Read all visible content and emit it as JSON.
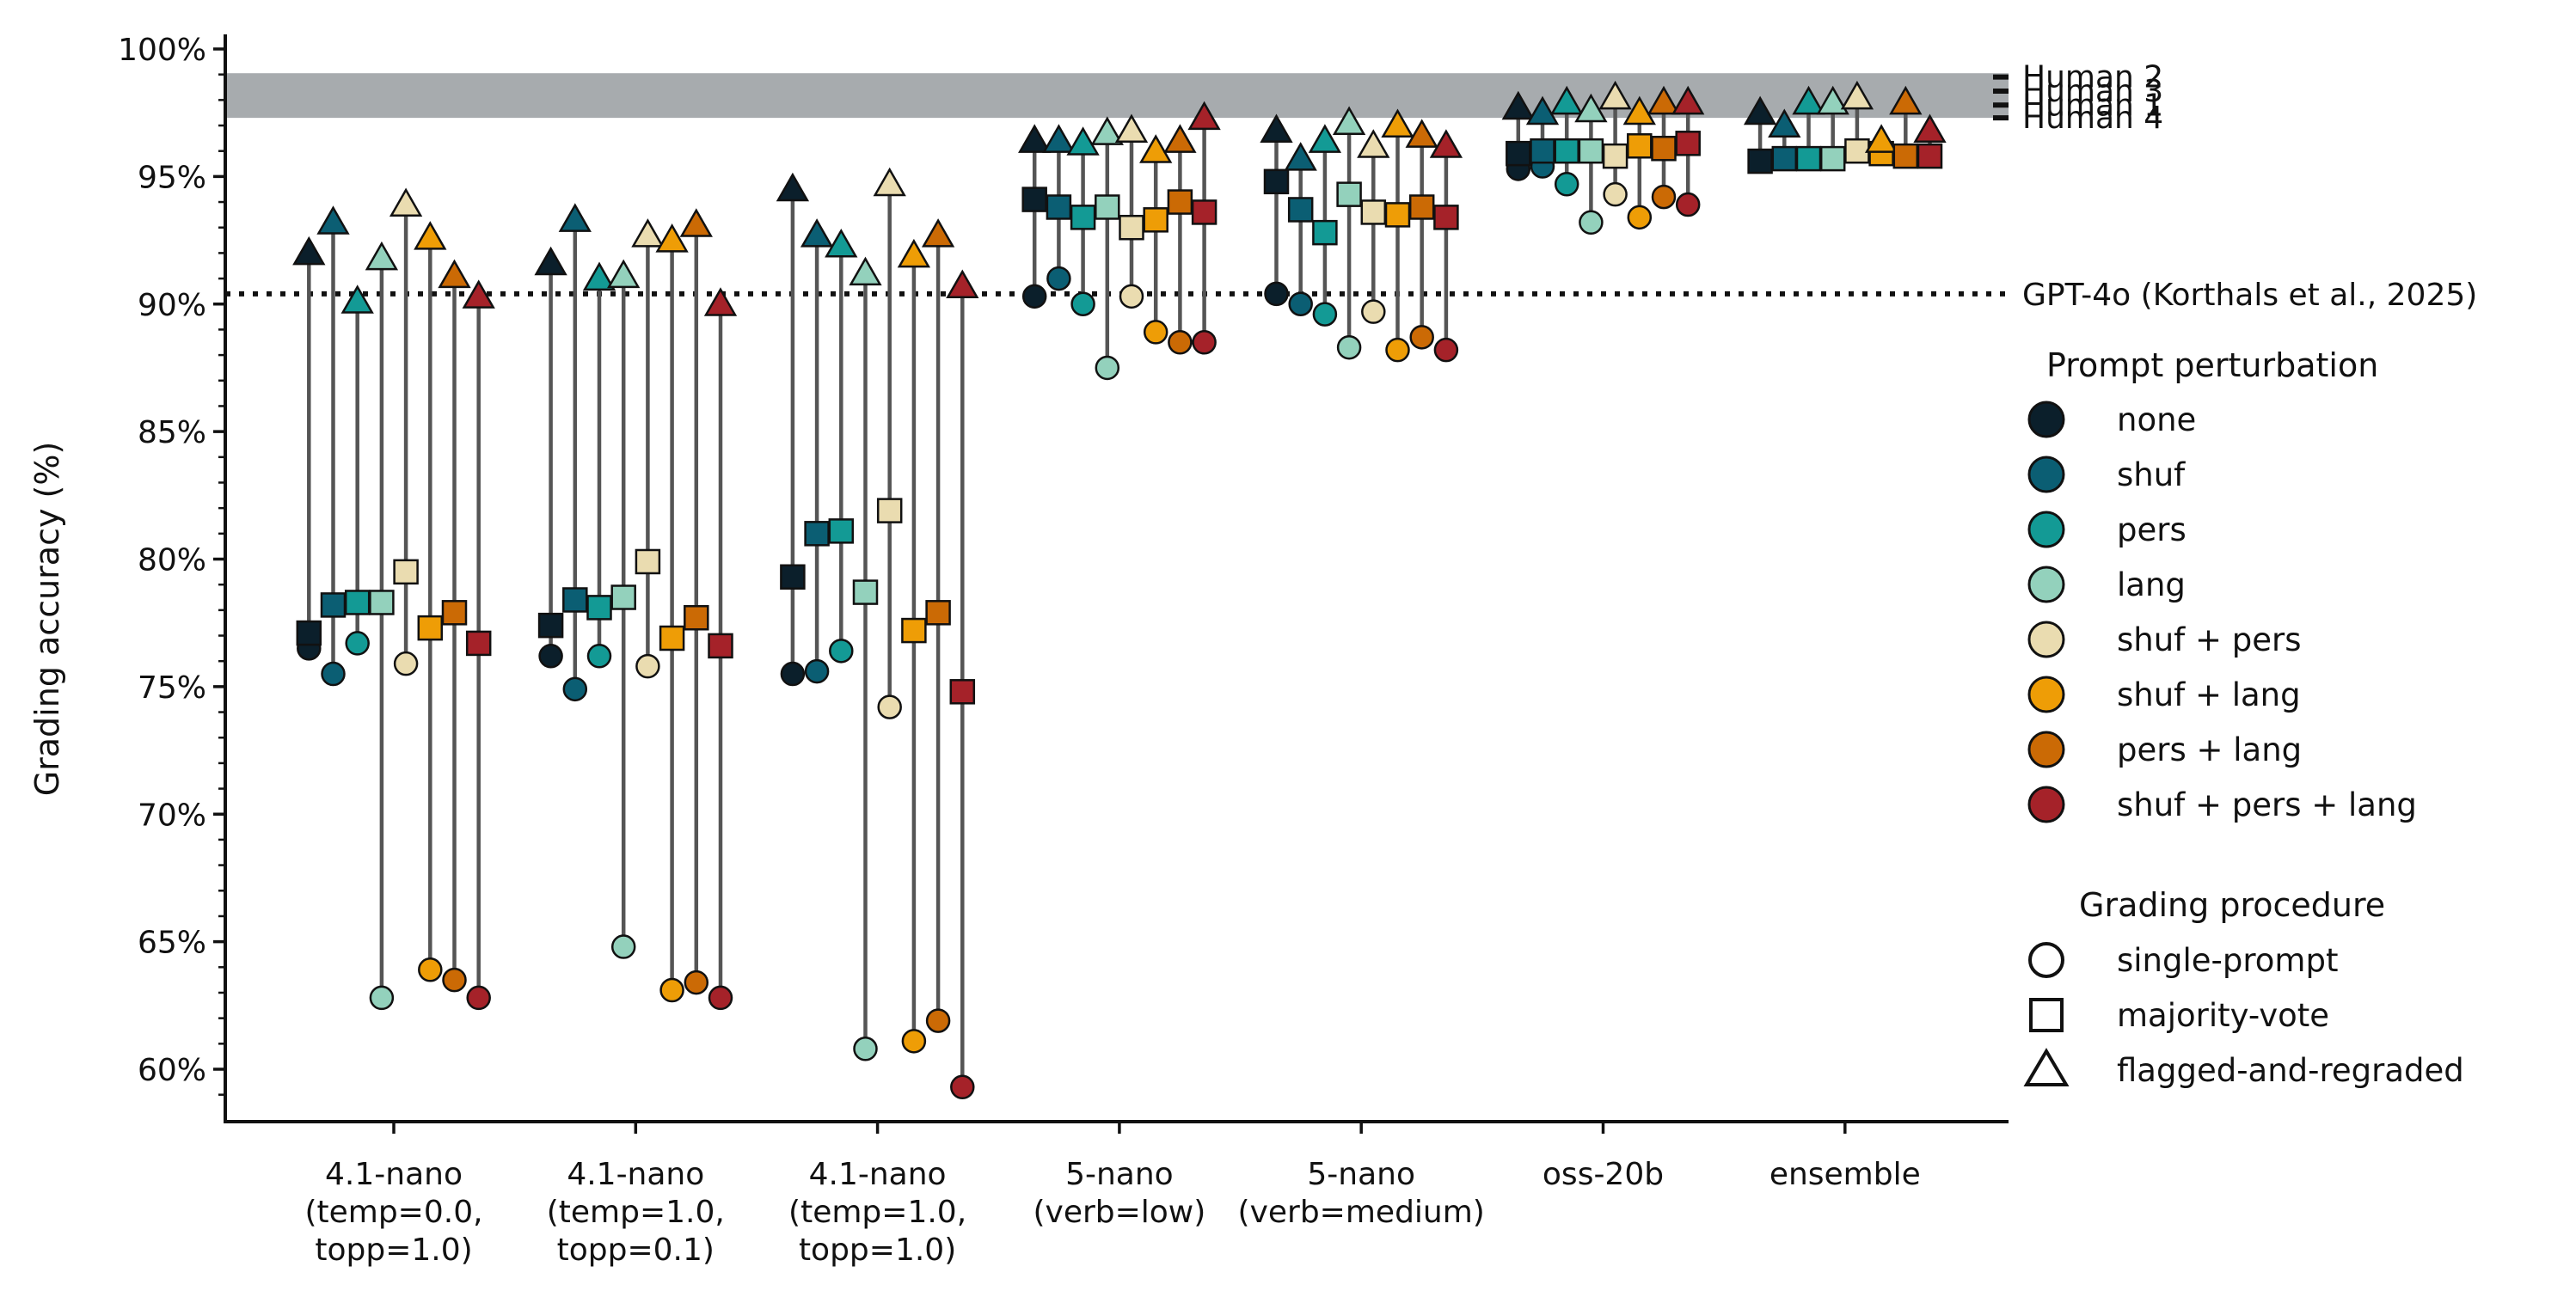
{
  "chart_data": {
    "type": "scatter",
    "ylabel": "Grading accuracy (%)",
    "xlabel": "",
    "ylim": [
      58.2,
      100.8
    ],
    "yticks": [
      60,
      65,
      70,
      75,
      80,
      85,
      90,
      95,
      100
    ],
    "ytick_labels": [
      "60%",
      "65%",
      "70%",
      "75%",
      "80%",
      "85%",
      "90%",
      "95%",
      "100%"
    ],
    "grid": false,
    "human_band": {
      "y_min": 97.3,
      "y_max": 99.05,
      "color": "#a7abae"
    },
    "human_labels": [
      {
        "label": "Human 2",
        "value": 98.9
      },
      {
        "label": "Human 3",
        "value": 98.35
      },
      {
        "label": "Human 1",
        "value": 97.8
      },
      {
        "label": "Human 4",
        "value": 97.3
      }
    ],
    "reference": {
      "label": "GPT-4o (Korthals et al., 2025)",
      "value": 90.4
    },
    "groups": [
      {
        "label": [
          "4.1-nano",
          "(temp=0.0,",
          "topp=1.0)"
        ],
        "single": [
          76.5,
          75.5,
          76.7,
          62.8,
          75.9,
          63.9,
          63.5,
          62.8
        ],
        "majority": [
          77.1,
          78.2,
          78.3,
          78.3,
          79.5,
          77.3,
          77.9,
          76.7
        ],
        "flagged": [
          92.0,
          93.2,
          90.1,
          91.8,
          93.9,
          92.6,
          91.1,
          90.3
        ]
      },
      {
        "label": [
          "4.1-nano",
          "(temp=1.0,",
          "topp=0.1)"
        ],
        "single": [
          76.2,
          74.9,
          76.2,
          64.8,
          75.8,
          63.1,
          63.4,
          62.8
        ],
        "majority": [
          77.4,
          78.4,
          78.1,
          78.5,
          79.9,
          76.9,
          77.7,
          76.6
        ],
        "flagged": [
          91.6,
          93.3,
          91.0,
          91.1,
          92.7,
          92.5,
          93.1,
          90.0
        ]
      },
      {
        "label": [
          "4.1-nano",
          "(temp=1.0,",
          "topp=1.0)"
        ],
        "single": [
          75.5,
          75.6,
          76.4,
          60.8,
          74.2,
          61.1,
          61.9,
          59.3
        ],
        "majority": [
          79.3,
          81.0,
          81.1,
          78.7,
          81.9,
          77.2,
          77.9,
          74.8
        ],
        "flagged": [
          94.5,
          92.7,
          92.3,
          91.2,
          94.7,
          91.9,
          92.7,
          90.7
        ]
      },
      {
        "label": [
          "5-nano",
          "(verb=low)"
        ],
        "single": [
          90.3,
          91.0,
          90.0,
          87.5,
          90.3,
          88.9,
          88.5,
          88.5
        ],
        "majority": [
          94.1,
          93.8,
          93.4,
          93.8,
          93.0,
          93.3,
          94.0,
          93.6
        ],
        "flagged": [
          96.4,
          96.4,
          96.3,
          96.7,
          96.8,
          96.0,
          96.4,
          97.3
        ]
      },
      {
        "label": [
          "5-nano",
          "(verb=medium)"
        ],
        "single": [
          90.4,
          90.0,
          89.6,
          88.3,
          89.7,
          88.2,
          88.7,
          88.2
        ],
        "majority": [
          94.8,
          93.7,
          92.8,
          94.3,
          93.6,
          93.5,
          93.8,
          93.4
        ],
        "flagged": [
          96.8,
          95.7,
          96.4,
          97.1,
          96.2,
          97.0,
          96.6,
          96.2
        ]
      },
      {
        "label": [
          "oss-20b"
        ],
        "single": [
          95.3,
          95.4,
          94.7,
          93.2,
          94.3,
          93.4,
          94.2,
          93.9
        ],
        "majority": [
          95.9,
          96.0,
          96.0,
          96.0,
          95.8,
          96.2,
          96.1,
          96.3
        ],
        "flagged": [
          97.7,
          97.5,
          97.9,
          97.6,
          98.1,
          97.5,
          97.9,
          97.9
        ]
      },
      {
        "label": [
          "ensemble"
        ],
        "single": [],
        "majority": [
          95.6,
          95.7,
          95.7,
          95.7,
          96.0,
          95.9,
          95.8,
          95.8
        ],
        "flagged": [
          97.5,
          97.0,
          97.9,
          97.9,
          98.1,
          96.4,
          97.9,
          96.8
        ]
      }
    ],
    "series": [
      {
        "name": "none",
        "color": "#0b1f2b"
      },
      {
        "name": "shuf",
        "color": "#0b5e73"
      },
      {
        "name": "pers",
        "color": "#139a95"
      },
      {
        "name": "lang",
        "color": "#93d1bc"
      },
      {
        "name": "shuf + pers",
        "color": "#eadcb0"
      },
      {
        "name": "shuf + lang",
        "color": "#ee9d06"
      },
      {
        "name": "pers + lang",
        "color": "#cb6a05"
      },
      {
        "name": "shuf + pers + lang",
        "color": "#a52229"
      }
    ],
    "legend_prompt_title": "Prompt perturbation",
    "legend_procedure_title": "Grading procedure",
    "procedures": [
      {
        "name": "single-prompt",
        "marker": "circle"
      },
      {
        "name": "majority-vote",
        "marker": "square"
      },
      {
        "name": "flagged-and-regraded",
        "marker": "triangle"
      }
    ],
    "legend_position": "right"
  }
}
